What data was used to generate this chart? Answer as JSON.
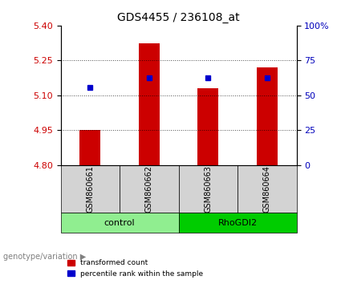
{
  "title": "GDS4455 / 236108_at",
  "categories": [
    "GSM860661",
    "GSM860662",
    "GSM860663",
    "GSM860664"
  ],
  "red_values": [
    4.951,
    5.325,
    5.13,
    5.22
  ],
  "blue_values": [
    5.135,
    5.175,
    5.175,
    5.175
  ],
  "ylim_left": [
    4.8,
    5.4
  ],
  "ylim_right": [
    0,
    100
  ],
  "yticks_left": [
    4.8,
    4.95,
    5.1,
    5.25,
    5.4
  ],
  "yticks_right": [
    0,
    25,
    50,
    75,
    100
  ],
  "ytick_labels_right": [
    "0",
    "25",
    "50",
    "75",
    "100%"
  ],
  "groups": [
    {
      "label": "control",
      "indices": [
        0,
        1
      ],
      "color": "#90ee90"
    },
    {
      "label": "RhoGDI2",
      "indices": [
        2,
        3
      ],
      "color": "#00cc00"
    }
  ],
  "legend_items": [
    {
      "color": "#cc0000",
      "label": "transformed count"
    },
    {
      "color": "#0000cc",
      "label": "percentile rank within the sample"
    }
  ],
  "bar_color": "#cc0000",
  "blue_color": "#0000cc",
  "left_axis_color": "#cc0000",
  "right_axis_color": "#0000bb",
  "background_plot": "#ffffff",
  "background_label": "#d3d3d3",
  "genotype_label": "genotype/variation"
}
